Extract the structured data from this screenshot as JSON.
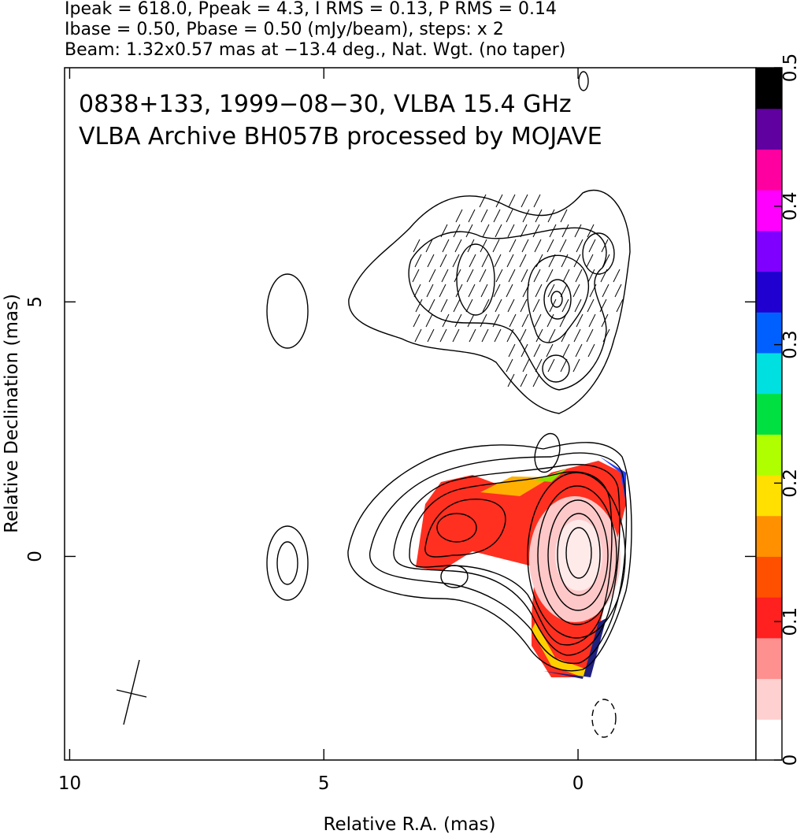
{
  "chart_data": {
    "type": "contour",
    "header": [
      "Ipeak = 618.0, Ppeak = 4.3, I RMS = 0.13, P RMS = 0.14",
      "Ibase = 0.50, Pbase = 0.50 (mJy/beam), steps: x 2",
      "Beam: 1.32x0.57 mas at −13.4 deg., Nat. Wgt. (no taper)"
    ],
    "annotations": [
      "0838+133, 1999−08−30, VLBA 15.4 GHz",
      "VLBA Archive BH057B processed by MOJAVE"
    ],
    "xlabel": "Relative R.A. (mas)",
    "ylabel": "Relative Declination (mas)",
    "xlim": [
      10.1,
      -3.5
    ],
    "xticks": [
      10,
      5,
      0
    ],
    "ylim": [
      -4.0,
      9.6
    ],
    "yticks": [
      0,
      5
    ],
    "colorbar": {
      "lim": [
        0,
        0.5
      ],
      "ticks": [
        0,
        0.1,
        0.2,
        0.3,
        0.4,
        0.5
      ],
      "colormap": [
        "#ffffff",
        "#ffd0d0",
        "#ff9090",
        "#ff2020",
        "#ff5000",
        "#ff9000",
        "#ffe000",
        "#b0ff00",
        "#00e040",
        "#00e0e0",
        "#0060ff",
        "#2000d0",
        "#8000ff",
        "#ff00ff",
        "#ff00a0",
        "#6000a0",
        "#000000"
      ]
    }
  }
}
